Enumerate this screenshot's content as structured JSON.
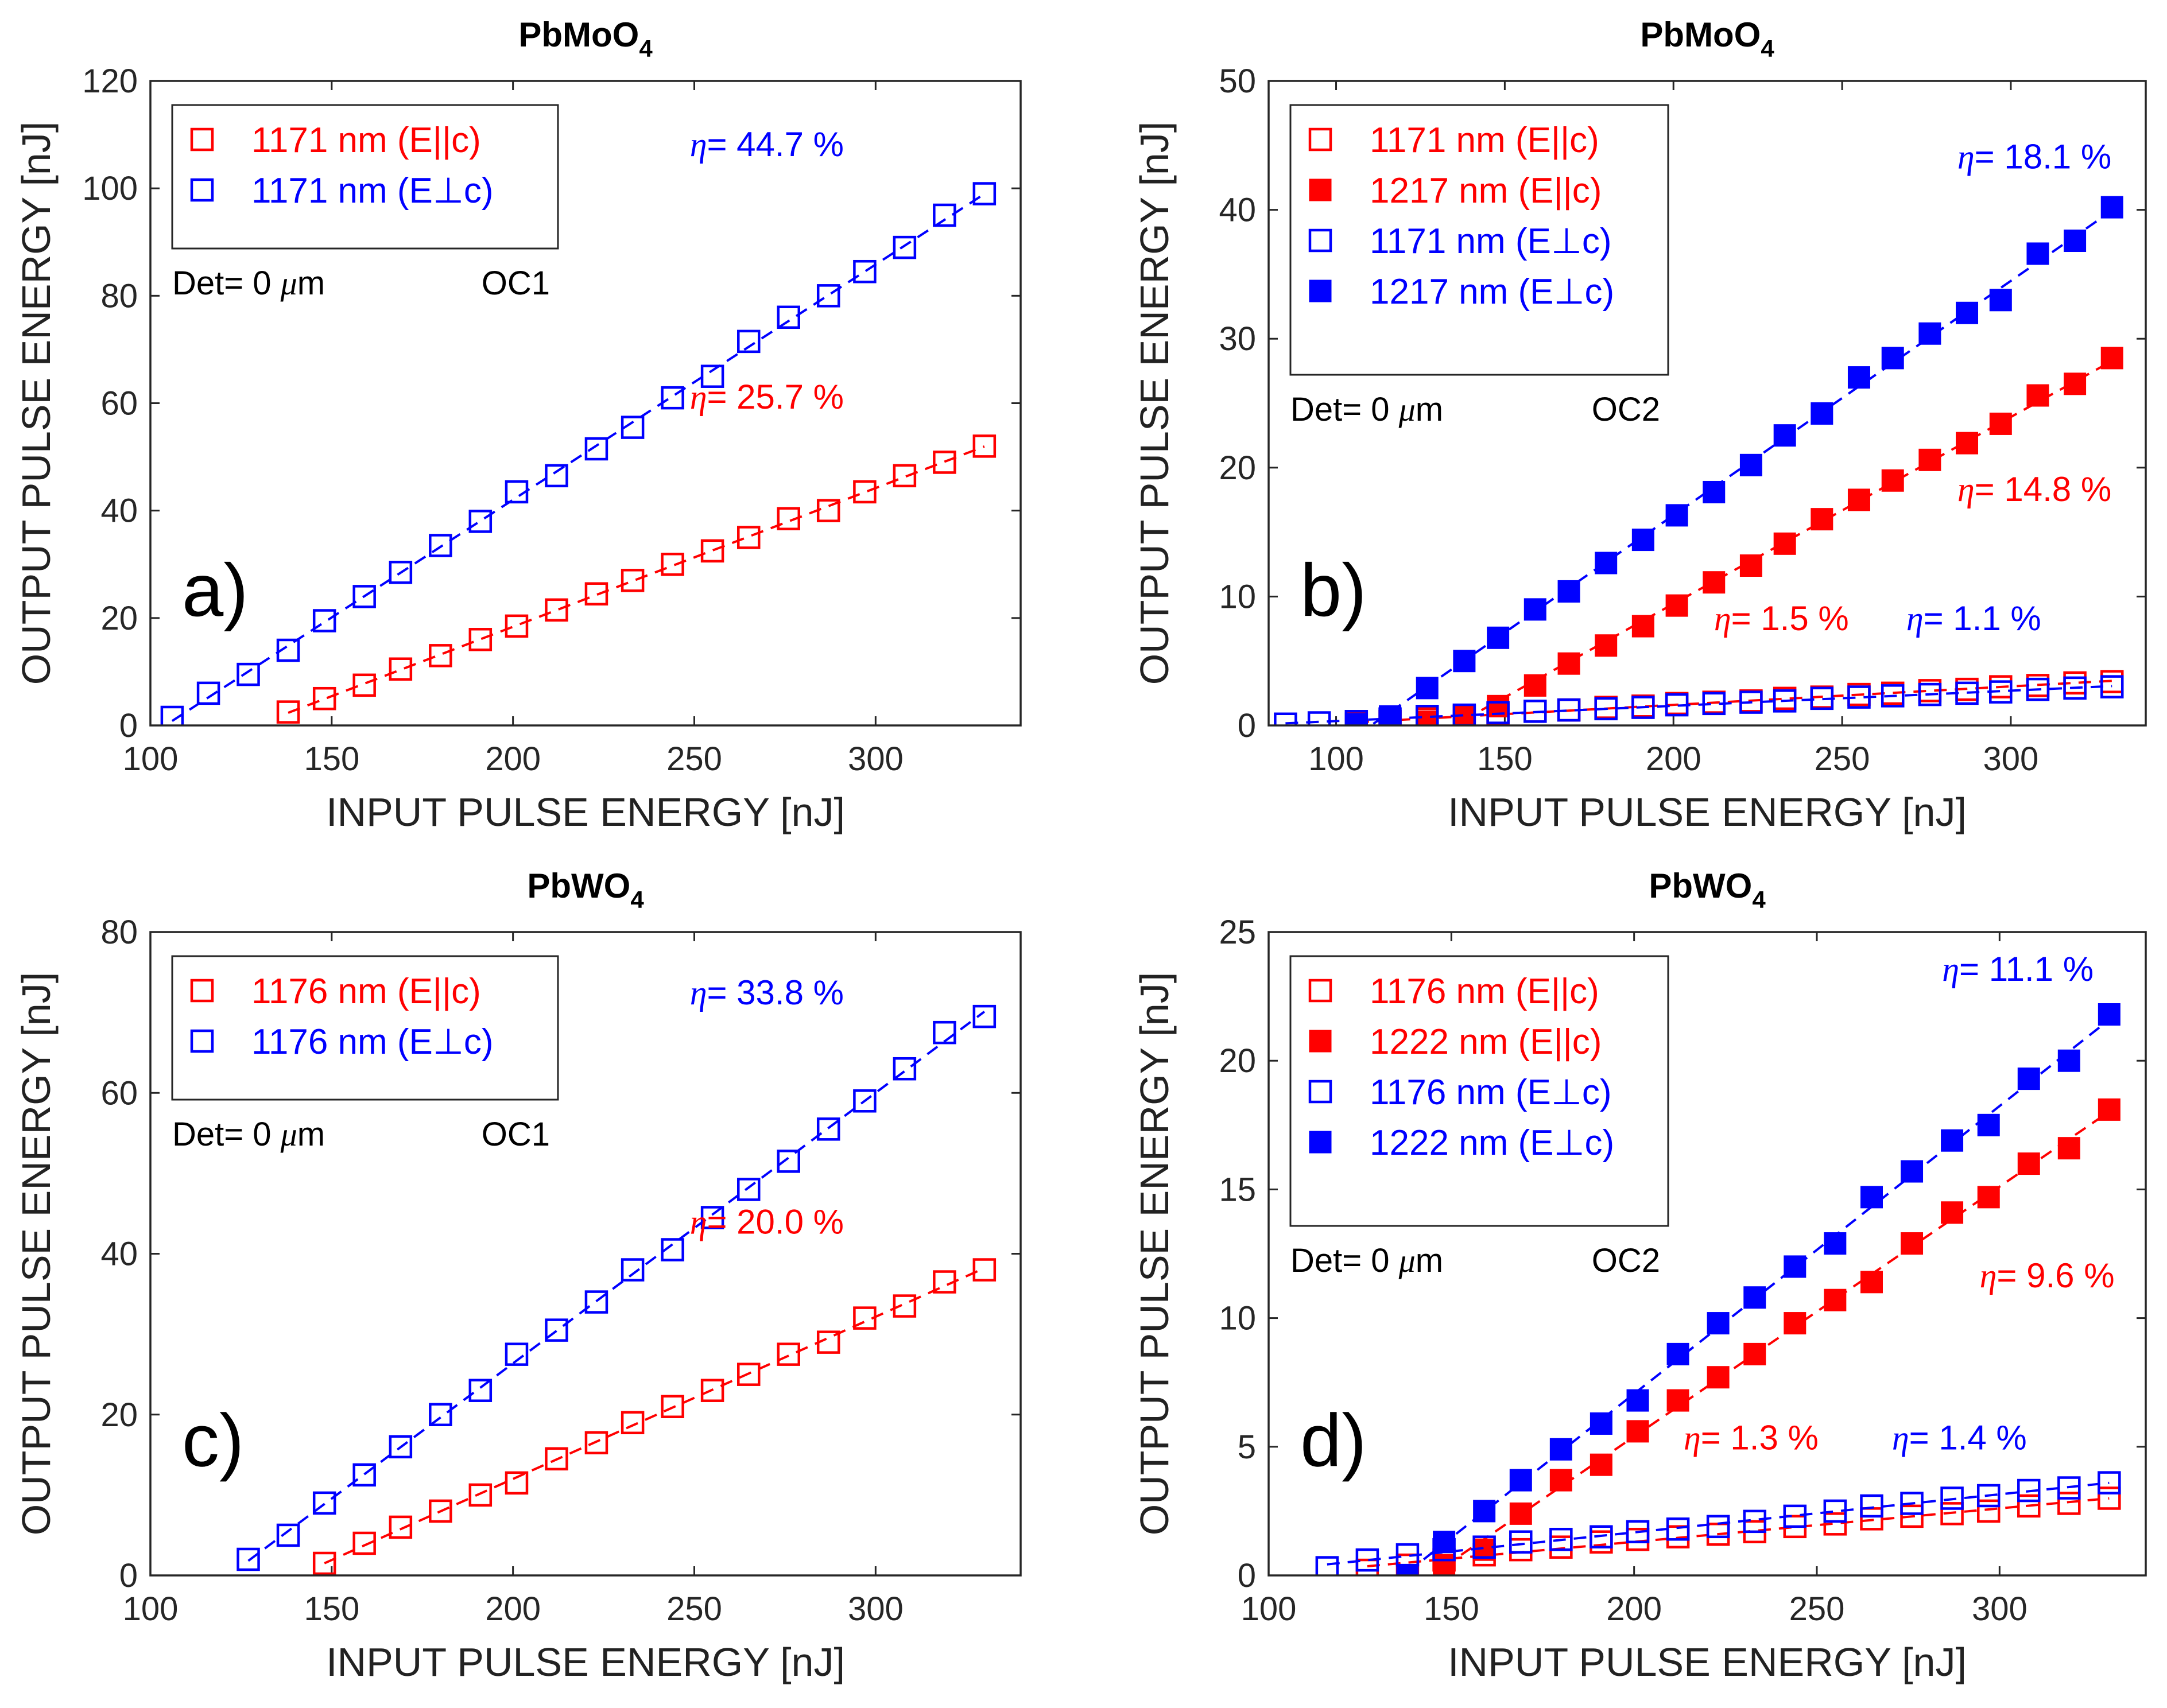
{
  "chart_data": [
    {
      "type": "scatter",
      "panel_label": "a)",
      "title": "PbMoO",
      "title_subscript": "4",
      "xlabel": "INPUT PULSE ENERGY [nJ]",
      "ylabel": "OUTPUT PULSE ENERGY [nJ]",
      "xlim": [
        100,
        340
      ],
      "ylim": [
        0,
        120
      ],
      "xticks": [
        100,
        150,
        200,
        250,
        300
      ],
      "yticks": [
        0,
        20,
        40,
        60,
        80,
        100,
        120
      ],
      "legend_position": "top-left",
      "legend_note_left": "Det= 0 μm",
      "legend_note_right": "OC1",
      "series": [
        {
          "name": "1171 nm (E||c)",
          "color": "#ff0000",
          "filled": false,
          "x": [
            138,
            148,
            159,
            169,
            180,
            191,
            201,
            212,
            223,
            233,
            244,
            255,
            265,
            276,
            287,
            297,
            308,
            319,
            330
          ],
          "y": [
            2.5,
            5,
            7.5,
            10.5,
            13,
            16,
            18.5,
            21.5,
            24.5,
            27,
            30,
            32.5,
            35,
            38.5,
            40,
            43.5,
            46.5,
            49,
            52
          ]
        },
        {
          "name": "1171 nm (E⊥c)",
          "color": "#0000ff",
          "filled": false,
          "x": [
            106,
            116,
            127,
            138,
            148,
            159,
            169,
            180,
            191,
            201,
            212,
            223,
            233,
            244,
            255,
            265,
            276,
            287,
            297,
            308,
            319,
            330
          ],
          "y": [
            1.5,
            6,
            9.5,
            14,
            19.5,
            24,
            28.5,
            33.5,
            38,
            43.5,
            46.5,
            51.5,
            55.5,
            61,
            65,
            71.5,
            76,
            80,
            84.5,
            89,
            95,
            99
          ]
        }
      ],
      "annotations": [
        {
          "text": "η= 44.7 %",
          "x": 270,
          "y": 106,
          "color": "#0000ff"
        },
        {
          "text": "η= 25.7 %",
          "x": 270,
          "y": 59,
          "color": "#ff0000"
        }
      ]
    },
    {
      "type": "scatter",
      "panel_label": "b)",
      "title": "PbMoO",
      "title_subscript": "4",
      "xlabel": "INPUT PULSE ENERGY  [nJ]",
      "ylabel": "OUTPUT PULSE ENERGY  [nJ]",
      "xlim": [
        80,
        340
      ],
      "ylim": [
        0,
        50
      ],
      "xticks": [
        100,
        150,
        200,
        250,
        300
      ],
      "yticks": [
        0,
        10,
        20,
        30,
        40,
        50
      ],
      "legend_position": "top-left",
      "legend_note_left": "Det= 0 μm",
      "legend_note_right": "OC2",
      "series": [
        {
          "name": "1171 nm (E||c)",
          "color": "#ff0000",
          "filled": false,
          "x": [
            106,
            116,
            127,
            138,
            148,
            159,
            169,
            180,
            191,
            201,
            212,
            223,
            233,
            244,
            255,
            265,
            276,
            287,
            297,
            308,
            319,
            330
          ],
          "y": [
            0.1,
            0.3,
            0.5,
            0.7,
            0.9,
            1.1,
            1.2,
            1.4,
            1.5,
            1.7,
            1.8,
            1.9,
            2.1,
            2.2,
            2.4,
            2.5,
            2.7,
            2.8,
            3.0,
            3.1,
            3.3,
            3.4
          ]
        },
        {
          "name": "1217 nm (E||c)",
          "color": "#ff0000",
          "filled": true,
          "x": [
            127,
            138,
            148,
            159,
            169,
            180,
            191,
            201,
            212,
            223,
            233,
            244,
            255,
            265,
            276,
            287,
            297,
            308,
            319,
            330
          ],
          "y": [
            0.3,
            0.6,
            1.5,
            3.1,
            4.8,
            6.2,
            7.7,
            9.3,
            11.1,
            12.4,
            14.1,
            16.0,
            17.5,
            19.0,
            20.6,
            21.9,
            23.4,
            25.6,
            26.5,
            28.5
          ]
        },
        {
          "name": "1171 nm (E⊥c)",
          "color": "#0000ff",
          "filled": false,
          "x": [
            85,
            95,
            106,
            116,
            127,
            138,
            148,
            159,
            169,
            180,
            191,
            201,
            212,
            223,
            233,
            244,
            255,
            265,
            276,
            287,
            297,
            308,
            319,
            330
          ],
          "y": [
            0.1,
            0.2,
            0.3,
            0.5,
            0.7,
            0.8,
            1.0,
            1.1,
            1.2,
            1.3,
            1.4,
            1.6,
            1.7,
            1.8,
            1.9,
            2.1,
            2.2,
            2.3,
            2.4,
            2.5,
            2.6,
            2.8,
            2.9,
            3.0
          ]
        },
        {
          "name": "1217 nm (E⊥c)",
          "color": "#0000ff",
          "filled": true,
          "x": [
            106,
            116,
            127,
            138,
            148,
            159,
            169,
            180,
            191,
            201,
            212,
            223,
            233,
            244,
            255,
            265,
            276,
            287,
            297,
            308,
            319,
            330
          ],
          "y": [
            0.1,
            0.7,
            2.9,
            5.0,
            6.8,
            9.0,
            10.4,
            12.6,
            14.4,
            16.3,
            18.1,
            20.2,
            22.5,
            24.2,
            27.0,
            28.5,
            30.4,
            32.0,
            33.0,
            36.6,
            37.6,
            40.2
          ]
        }
      ],
      "annotations": [
        {
          "text": "η= 18.1 %",
          "x": 307,
          "y": 43.2,
          "color": "#0000ff"
        },
        {
          "text": "η= 14.8 %",
          "x": 307,
          "y": 17.4,
          "color": "#ff0000"
        },
        {
          "text": "η= 1.5 %",
          "x": 232,
          "y": 7.4,
          "color": "#ff0000"
        },
        {
          "text": "η= 1.1 %",
          "x": 289,
          "y": 7.4,
          "color": "#0000ff"
        }
      ]
    },
    {
      "type": "scatter",
      "panel_label": "c)",
      "title": "PbWO",
      "title_subscript": "4",
      "xlabel": "INPUT PULSE ENERGY [nJ]",
      "ylabel": "OUTPUT PULSE ENERGY [nJ]",
      "xlim": [
        100,
        340
      ],
      "ylim": [
        0,
        80
      ],
      "xticks": [
        100,
        150,
        200,
        250,
        300
      ],
      "yticks": [
        0,
        20,
        40,
        60,
        80
      ],
      "legend_position": "top-left",
      "legend_note_left": "Det= 0 μm",
      "legend_note_right": "OC1",
      "series": [
        {
          "name": "1176 nm (E||c)",
          "color": "#ff0000",
          "filled": false,
          "x": [
            148,
            159,
            169,
            180,
            191,
            201,
            212,
            223,
            233,
            244,
            255,
            265,
            276,
            287,
            297,
            308,
            319,
            330
          ],
          "y": [
            1.5,
            4,
            6,
            8,
            10,
            11.5,
            14.5,
            16.5,
            19,
            21,
            23,
            25,
            27.5,
            29,
            32,
            33.5,
            36.5,
            38
          ]
        },
        {
          "name": "1176 nm (E⊥c)",
          "color": "#0000ff",
          "filled": false,
          "x": [
            127,
            138,
            148,
            159,
            169,
            180,
            191,
            201,
            212,
            223,
            233,
            244,
            255,
            265,
            276,
            287,
            297,
            308,
            319,
            330
          ],
          "y": [
            2,
            5,
            9,
            12.5,
            16,
            20,
            23,
            27.5,
            30.5,
            34,
            38,
            40.5,
            44.5,
            48,
            51.5,
            55.5,
            59,
            63,
            67.5,
            69.5
          ]
        }
      ],
      "annotations": [
        {
          "text": "η= 33.8 %",
          "x": 270,
          "y": 71,
          "color": "#0000ff"
        },
        {
          "text": "η= 20.0 %",
          "x": 270,
          "y": 42.5,
          "color": "#ff0000"
        }
      ]
    },
    {
      "type": "scatter",
      "panel_label": "d)",
      "title": "PbWO",
      "title_subscript": "4",
      "xlabel": "INPUT PULSE ENERGY  [nJ]",
      "ylabel": "OUTPUT PULSE ENERGY  [nJ]",
      "xlim": [
        100,
        340
      ],
      "ylim": [
        0,
        25
      ],
      "xticks": [
        100,
        150,
        200,
        250,
        300
      ],
      "yticks": [
        0,
        5,
        10,
        15,
        20,
        25
      ],
      "legend_position": "top-left",
      "legend_note_left": "Det= 0 μm",
      "legend_note_right": "OC2",
      "series": [
        {
          "name": "1176 nm (E||c)",
          "color": "#ff0000",
          "filled": false,
          "x": [
            127,
            138,
            148,
            159,
            169,
            180,
            191,
            201,
            212,
            223,
            233,
            244,
            255,
            265,
            276,
            287,
            297,
            308,
            319,
            330
          ],
          "y": [
            0.2,
            0.4,
            0.6,
            0.8,
            1.0,
            1.1,
            1.3,
            1.4,
            1.5,
            1.6,
            1.7,
            1.9,
            2.0,
            2.2,
            2.3,
            2.4,
            2.5,
            2.7,
            2.8,
            3.0
          ]
        },
        {
          "name": "1222 nm (E||c)",
          "color": "#ff0000",
          "filled": true,
          "x": [
            148,
            159,
            169,
            180,
            191,
            201,
            212,
            223,
            233,
            244,
            255,
            265,
            276,
            287,
            297,
            308,
            319,
            330
          ],
          "y": [
            0.4,
            1.0,
            2.4,
            3.7,
            4.3,
            5.6,
            6.8,
            7.7,
            8.6,
            9.8,
            10.7,
            11.4,
            12.9,
            14.1,
            14.7,
            16.0,
            16.6,
            18.1
          ]
        },
        {
          "name": "1176 nm (E⊥c)",
          "color": "#0000ff",
          "filled": false,
          "x": [
            116,
            127,
            138,
            148,
            159,
            169,
            180,
            191,
            201,
            212,
            223,
            233,
            244,
            255,
            265,
            276,
            287,
            297,
            308,
            319,
            330
          ],
          "y": [
            0.3,
            0.6,
            0.8,
            1.0,
            1.1,
            1.3,
            1.4,
            1.5,
            1.7,
            1.8,
            1.9,
            2.1,
            2.3,
            2.5,
            2.7,
            2.8,
            3.0,
            3.1,
            3.3,
            3.4,
            3.6
          ]
        },
        {
          "name": "1222 nm (E⊥c)",
          "color": "#0000ff",
          "filled": true,
          "x": [
            138,
            148,
            159,
            169,
            180,
            191,
            201,
            212,
            223,
            233,
            244,
            255,
            265,
            276,
            287,
            297,
            308,
            319,
            330
          ],
          "y": [
            0.0,
            1.3,
            2.5,
            3.7,
            4.9,
            5.9,
            6.8,
            8.6,
            9.8,
            10.8,
            12.0,
            12.9,
            14.7,
            15.7,
            16.9,
            17.5,
            19.3,
            20.0,
            21.8
          ]
        }
      ],
      "annotations": [
        {
          "text": "η= 11.1 %",
          "x": 305,
          "y": 23.1,
          "color": "#0000ff"
        },
        {
          "text": "η= 9.6 %",
          "x": 313,
          "y": 11.2,
          "color": "#ff0000"
        },
        {
          "text": "η= 1.3 %",
          "x": 232,
          "y": 4.9,
          "color": "#ff0000"
        },
        {
          "text": "η= 1.4 %",
          "x": 289,
          "y": 4.9,
          "color": "#0000ff"
        }
      ]
    }
  ]
}
